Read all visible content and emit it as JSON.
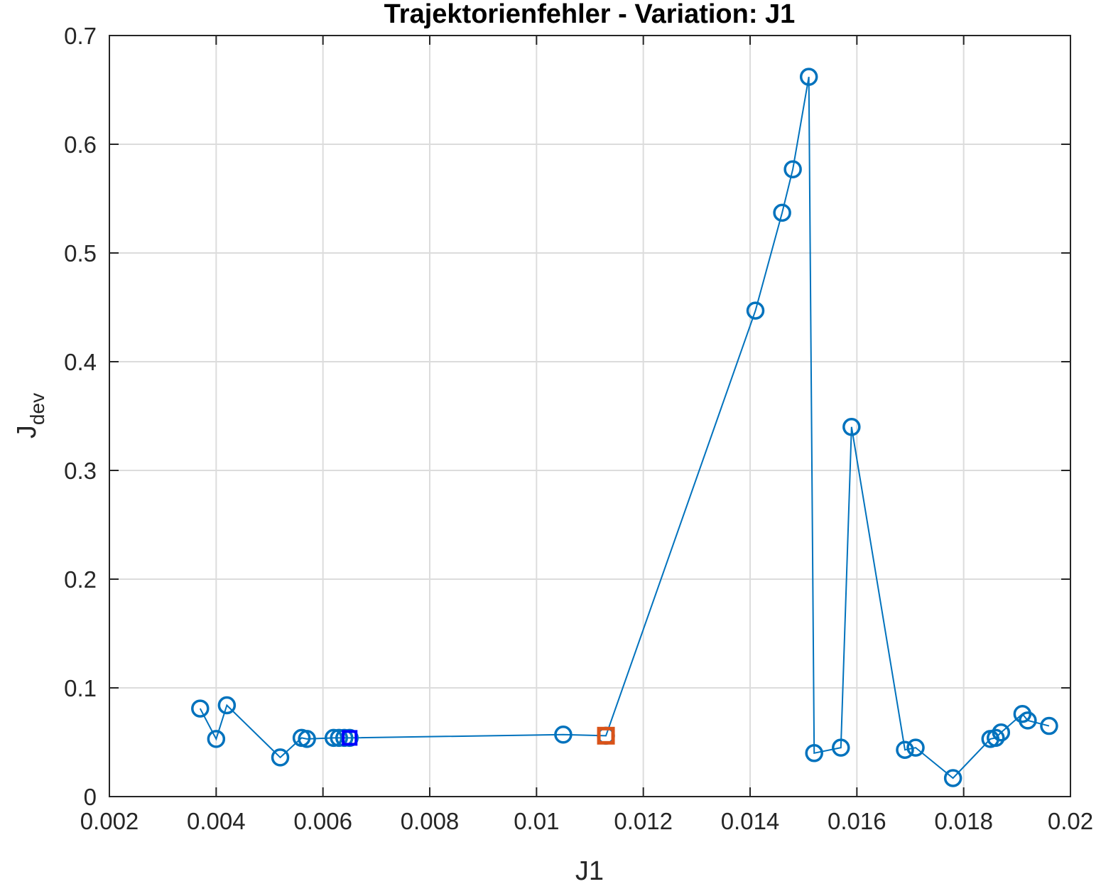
{
  "chart_data": {
    "type": "line",
    "title": "Trajektorienfehler - Variation: J1",
    "xlabel": "J1",
    "ylabel_main": "J",
    "ylabel_sub": "dev",
    "xlim": [
      0.002,
      0.02
    ],
    "ylim": [
      0,
      0.7
    ],
    "xticks": [
      0.002,
      0.004,
      0.006,
      0.008,
      0.01,
      0.012,
      0.014,
      0.016,
      0.018,
      0.02
    ],
    "xtick_labels": [
      "0.002",
      "0.004",
      "0.006",
      "0.008",
      "0.01",
      "0.012",
      "0.014",
      "0.016",
      "0.018",
      "0.02"
    ],
    "yticks": [
      0,
      0.1,
      0.2,
      0.3,
      0.4,
      0.5,
      0.6,
      0.7
    ],
    "ytick_labels": [
      "0",
      "0.1",
      "0.2",
      "0.3",
      "0.4",
      "0.5",
      "0.6",
      "0.7"
    ],
    "grid": true,
    "colors": {
      "series": "#0072bd",
      "highlight": "#d95319",
      "selected": "#0000ff",
      "grid": "#dcdcdc",
      "axis": "#262626"
    },
    "series": [
      {
        "marker": "circle",
        "points": [
          [
            0.0037,
            0.081
          ],
          [
            0.004,
            0.053
          ],
          [
            0.0042,
            0.084
          ],
          [
            0.0052,
            0.036
          ],
          [
            0.0056,
            0.054
          ],
          [
            0.0057,
            0.053
          ],
          [
            0.0062,
            0.054
          ],
          [
            0.0063,
            0.054
          ],
          [
            0.0064,
            0.054
          ],
          [
            0.0065,
            0.054
          ],
          [
            0.0105,
            0.057
          ],
          [
            0.0113,
            0.056
          ],
          [
            0.0141,
            0.447
          ],
          [
            0.0146,
            0.537
          ],
          [
            0.0148,
            0.577
          ],
          [
            0.0151,
            0.662
          ],
          [
            0.0152,
            0.04
          ],
          [
            0.0157,
            0.045
          ],
          [
            0.0159,
            0.34
          ],
          [
            0.0169,
            0.043
          ],
          [
            0.0171,
            0.045
          ],
          [
            0.0178,
            0.017
          ],
          [
            0.0185,
            0.053
          ],
          [
            0.0186,
            0.054
          ],
          [
            0.0187,
            0.059
          ],
          [
            0.0191,
            0.076
          ],
          [
            0.0192,
            0.07
          ],
          [
            0.0196,
            0.065
          ]
        ]
      }
    ],
    "highlight_point": [
      0.0113,
      0.056
    ],
    "selected_point": [
      0.0065,
      0.054
    ]
  }
}
